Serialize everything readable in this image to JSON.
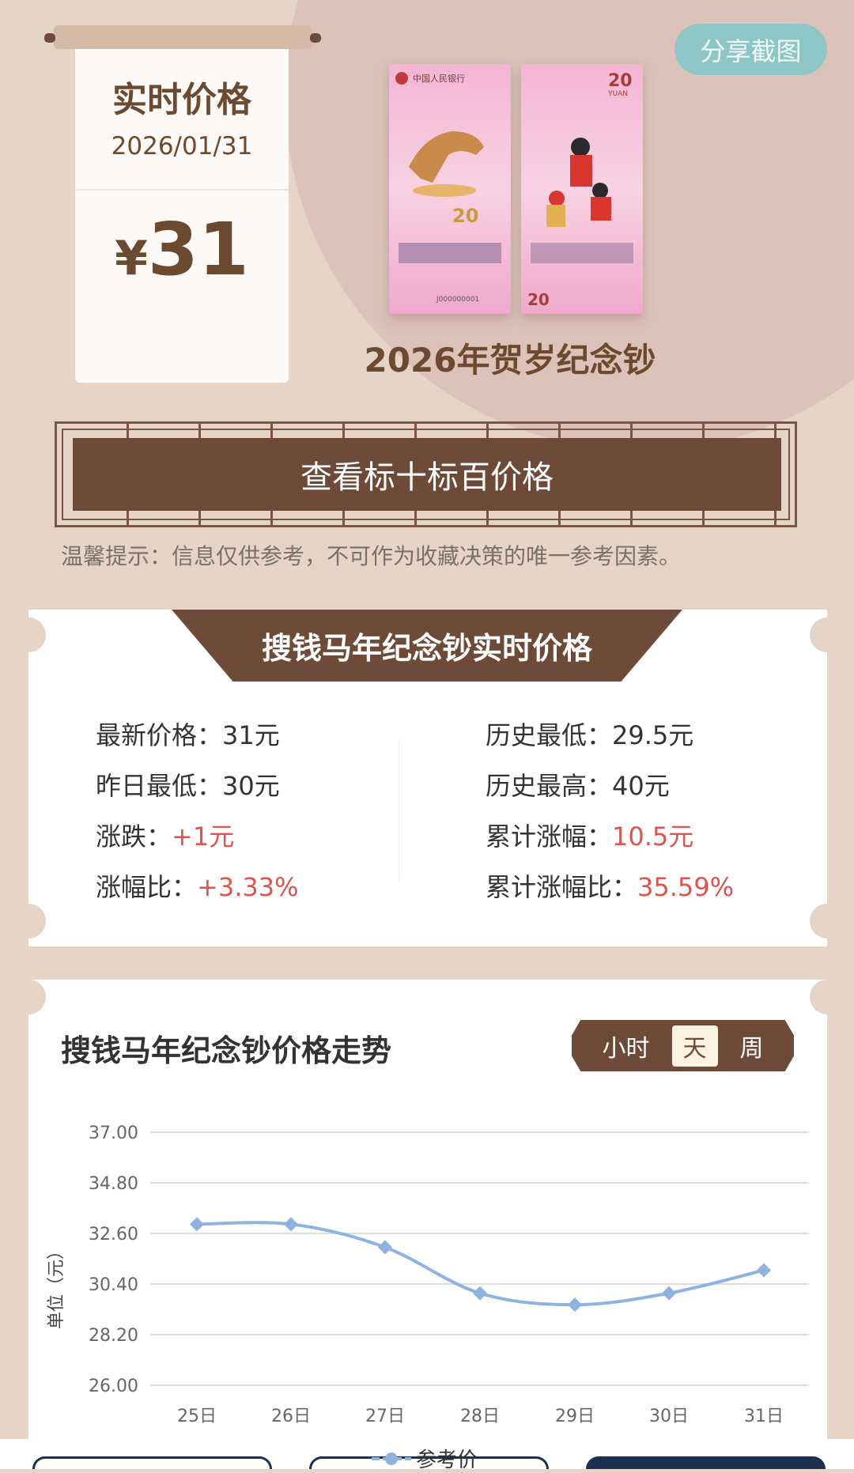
{
  "header": {
    "title": "实时价格",
    "date": "2026/01/31",
    "currency": "¥",
    "price": "31",
    "share_label": "分享截图"
  },
  "product": {
    "title": "2026年贺岁纪念钞",
    "note_lettering": [
      "中国人民银行",
      "20",
      "YUAN",
      "J000000001"
    ]
  },
  "view_button": "查看标十标百价格",
  "tip": "温馨提示：信息仅供参考，不可作为收藏决策的唯一参考因素。",
  "price_card": {
    "title": "搜钱马年纪念钞实时价格",
    "left": [
      {
        "label": "最新价格：",
        "value": "31元",
        "highlight": false
      },
      {
        "label": "昨日最低：",
        "value": "30元",
        "highlight": false
      },
      {
        "label": "涨跌：",
        "value": "+1元",
        "highlight": true
      },
      {
        "label": "涨幅比：",
        "value": "+3.33%",
        "highlight": true
      }
    ],
    "right": [
      {
        "label": "历史最低：",
        "value": "29.5元",
        "highlight": false
      },
      {
        "label": "历史最高：",
        "value": "40元",
        "highlight": false
      },
      {
        "label": "累计涨幅：",
        "value": "10.5元",
        "highlight": true
      },
      {
        "label": "累计涨幅比：",
        "value": "35.59%",
        "highlight": true
      }
    ]
  },
  "trend": {
    "title": "搜钱马年纪念钞价格走势",
    "toggle": [
      {
        "label": "小时",
        "active": false
      },
      {
        "label": "天",
        "active": true
      },
      {
        "label": "周",
        "active": false
      }
    ]
  },
  "colors": {
    "brown": "#6e4b39",
    "accent_red": "#e0524a",
    "line": "#8fb3e0",
    "share": "#8ec6c7"
  },
  "chart_data": {
    "type": "line",
    "ylabel": "单位（元）",
    "ylim": [
      26,
      37
    ],
    "yticks": [
      "37.00",
      "34.80",
      "32.60",
      "30.40",
      "28.20",
      "26.00"
    ],
    "categories": [
      "25日",
      "26日",
      "27日",
      "28日",
      "29日",
      "30日",
      "31日"
    ],
    "series": [
      {
        "name": "参考价",
        "values": [
          33,
          33,
          32,
          30,
          29.5,
          30,
          31
        ]
      }
    ],
    "grid": true,
    "legend": "bottom",
    "smooth": true
  }
}
